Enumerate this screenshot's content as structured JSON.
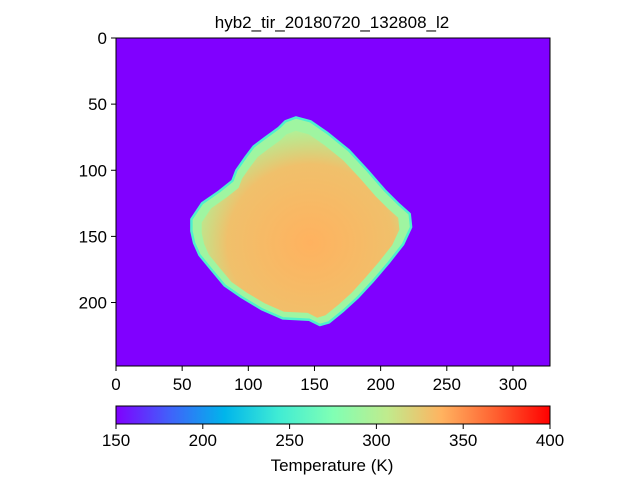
{
  "chart_data": {
    "type": "heatmap",
    "title": "hyb2_tir_20180720_132808_l2",
    "image_width": 328,
    "image_height": 248,
    "xlim": [
      0,
      328
    ],
    "ylim": [
      248,
      0
    ],
    "x_ticks": [
      0,
      50,
      100,
      150,
      200,
      250,
      300
    ],
    "y_ticks": [
      0,
      50,
      100,
      150,
      200
    ],
    "background_value": 150,
    "object": {
      "description_values": "asteroid disk, rim ~270-300 K, interior ~330-345 K",
      "rim_temperature": 290,
      "interior_temperature": 338,
      "outline": [
        [
          136,
          60
        ],
        [
          147,
          63
        ],
        [
          160,
          72
        ],
        [
          176,
          85
        ],
        [
          190,
          100
        ],
        [
          203,
          115
        ],
        [
          214,
          126
        ],
        [
          222,
          133
        ],
        [
          223,
          143
        ],
        [
          217,
          156
        ],
        [
          206,
          170
        ],
        [
          194,
          184
        ],
        [
          183,
          196
        ],
        [
          172,
          206
        ],
        [
          161,
          215
        ],
        [
          154,
          217
        ],
        [
          146,
          213
        ],
        [
          126,
          212
        ],
        [
          110,
          205
        ],
        [
          95,
          196
        ],
        [
          82,
          187
        ],
        [
          72,
          175
        ],
        [
          63,
          164
        ],
        [
          59,
          155
        ],
        [
          57,
          146
        ],
        [
          57,
          137
        ],
        [
          65,
          125
        ],
        [
          78,
          116
        ],
        [
          88,
          108
        ],
        [
          91,
          100
        ],
        [
          98,
          90
        ],
        [
          104,
          82
        ],
        [
          112,
          76
        ],
        [
          123,
          68
        ],
        [
          128,
          63
        ]
      ]
    },
    "colorbar": {
      "label": "Temperature (K)",
      "min": 150,
      "max": 400,
      "ticks": [
        150,
        200,
        250,
        300,
        350,
        400
      ],
      "colormap": "rainbow",
      "stops": [
        "#8000ff",
        "#4062fa",
        "#00b5eb",
        "#40ecd4",
        "#80ffb4",
        "#c0eb8d",
        "#ffb360",
        "#ff6030",
        "#ff0000"
      ]
    }
  }
}
